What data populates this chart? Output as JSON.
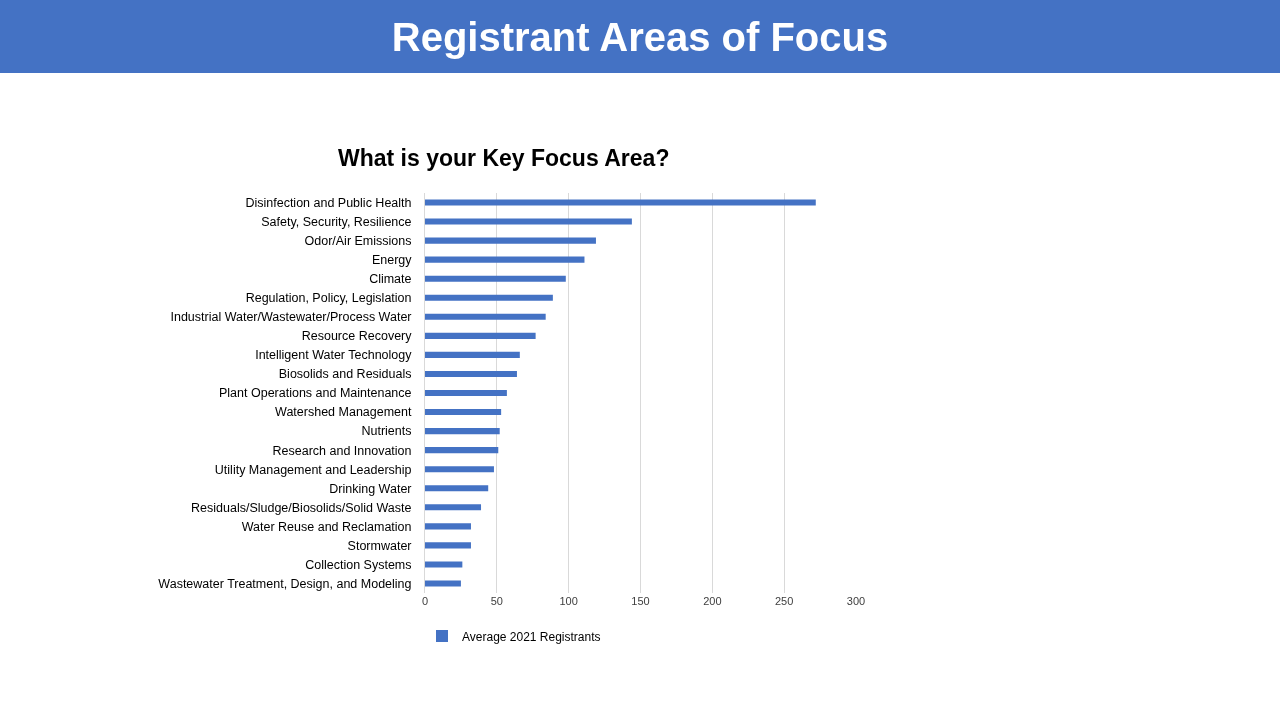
{
  "chart_data": {
    "type": "bar",
    "orientation": "horizontal",
    "title": "Registrant Areas of Focus",
    "subtitle": "What is your Key Focus Area?",
    "categories": [
      "Disinfection and Public Health",
      "Safety, Security, Resilience",
      "Odor/Air Emissions",
      "Energy",
      "Climate",
      "Regulation, Policy, Legislation",
      "Industrial Water/Wastewater/Process Water",
      "Resource Recovery",
      "Intelligent Water Technology",
      "Biosolids and Residuals",
      "Plant Operations and Maintenance",
      "Watershed Management",
      "Nutrients",
      "Research and Innovation",
      "Utility Management and Leadership",
      "Drinking Water",
      "Residuals/Sludge/Biosolids/Solid Waste",
      "Water Reuse and Reclamation",
      "Stormwater",
      "Collection Systems",
      "Wastewater Treatment, Design, and Modeling"
    ],
    "series": [
      {
        "name": "Average 2021 Registrants",
        "color": "#4472c4",
        "values": [
          272,
          144,
          119,
          111,
          98,
          89,
          84,
          77,
          66,
          64,
          57,
          53,
          52,
          51,
          48,
          44,
          39,
          32,
          32,
          26,
          25
        ]
      }
    ],
    "xlim": [
      0,
      300
    ],
    "xticks": [
      0,
      50,
      100,
      150,
      200,
      250,
      300
    ],
    "grid": "x",
    "legend": "bottom"
  }
}
